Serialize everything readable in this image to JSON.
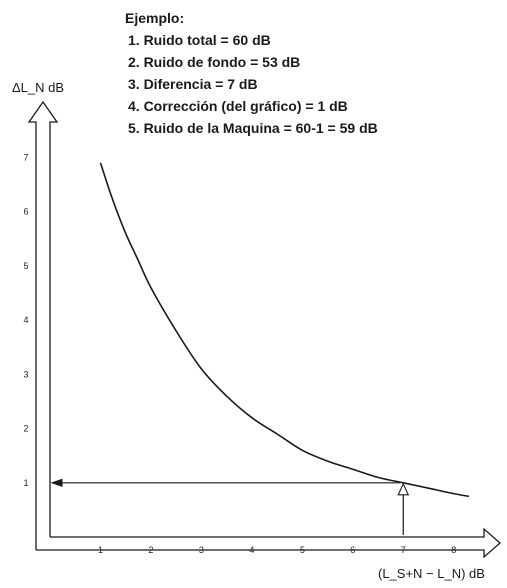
{
  "chart_data": {
    "type": "line",
    "title": "",
    "xlabel": "(L_S+N − L_N) dB",
    "ylabel": "ΔL_N dB",
    "x_ticks": [
      "1",
      "2",
      "3",
      "4",
      "5",
      "6",
      "7",
      "8"
    ],
    "y_ticks": [
      "1",
      "2",
      "3",
      "4",
      "5",
      "6",
      "7"
    ],
    "xlim": [
      0,
      8.6
    ],
    "ylim": [
      0,
      7.6
    ],
    "grid": false,
    "series": [
      {
        "x": [
          1.0,
          1.25,
          1.5,
          1.75,
          2.0,
          2.5,
          3.0,
          3.5,
          4.0,
          4.5,
          5.0,
          5.5,
          6.0,
          6.5,
          7.0,
          7.5,
          8.0,
          8.3
        ],
        "y": [
          6.9,
          6.2,
          5.6,
          5.1,
          4.6,
          3.8,
          3.1,
          2.6,
          2.2,
          1.9,
          1.6,
          1.4,
          1.25,
          1.1,
          1.0,
          0.9,
          0.8,
          0.75
        ]
      }
    ],
    "example": {
      "x": 7,
      "y": 1
    },
    "annotations": [
      "Ejemplo:",
      "1. Ruido total = 60 dB",
      "2. Ruido de fondo = 53 dB",
      "3. Diferencia = 7 dB",
      "4. Corrección (del gráfico) = 1 dB",
      "5. Ruido de la Maquina = 60-1 = 59 dB"
    ]
  },
  "colors": {
    "ink": "#1a1a1a",
    "background": "#ffffff"
  }
}
